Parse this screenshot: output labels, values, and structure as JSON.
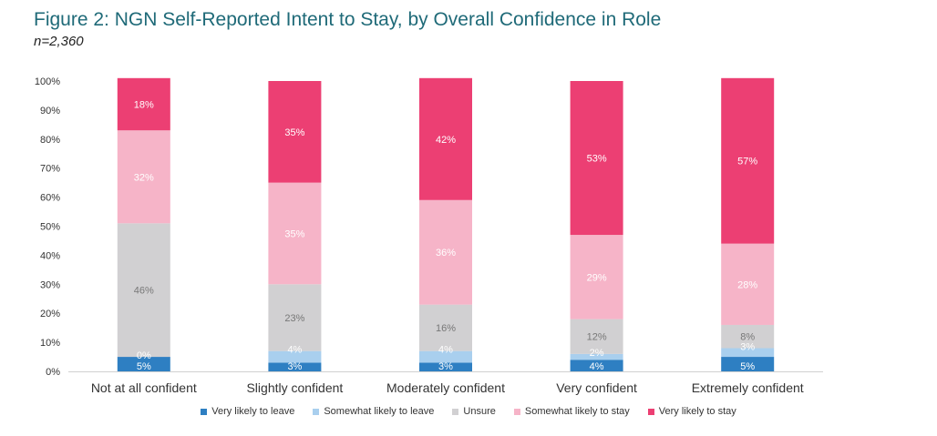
{
  "chart_data": {
    "type": "bar",
    "stacked": true,
    "title": "Figure 2: NGN Self-Reported Intent to Stay, by Overall Confidence in Role",
    "subtitle": "n=2,360",
    "categories": [
      "Not at all confident",
      "Slightly confident",
      "Moderately confident",
      "Very confident",
      "Extremely confident"
    ],
    "ylim": [
      0,
      100
    ],
    "yticks": [
      "0%",
      "10%",
      "20%",
      "30%",
      "40%",
      "50%",
      "60%",
      "70%",
      "80%",
      "90%",
      "100%"
    ],
    "series": [
      {
        "name": "Very likely to leave",
        "color": "#2e7fc2",
        "label_color": "#ffffff",
        "values": [
          5,
          3,
          3,
          4,
          5
        ],
        "labels": [
          "5%",
          "3%",
          "3%",
          "4%",
          "5%"
        ]
      },
      {
        "name": "Somewhat likely to leave",
        "color": "#a9cfee",
        "label_color": "#ffffff",
        "values": [
          0,
          4,
          4,
          2,
          3
        ],
        "labels": [
          "0%",
          "4%",
          "4%",
          "2%",
          "3%"
        ]
      },
      {
        "name": "Unsure",
        "color": "#d1d0d2",
        "label_color": "#777777",
        "values": [
          46,
          23,
          16,
          12,
          8
        ],
        "labels": [
          "46%",
          "23%",
          "16%",
          "12%",
          "8%"
        ]
      },
      {
        "name": "Somewhat likely to stay",
        "color": "#f6b4c8",
        "label_color": "#ffffff",
        "values": [
          32,
          35,
          36,
          29,
          28
        ],
        "labels": [
          "32%",
          "35%",
          "36%",
          "29%",
          "28%"
        ]
      },
      {
        "name": "Very likely to stay",
        "color": "#ec3f73",
        "label_color": "#ffffff",
        "values": [
          18,
          35,
          42,
          53,
          57
        ],
        "labels": [
          "18%",
          "35%",
          "42%",
          "53%",
          "57%"
        ]
      }
    ],
    "grid": false,
    "legend_position": "bottom"
  }
}
